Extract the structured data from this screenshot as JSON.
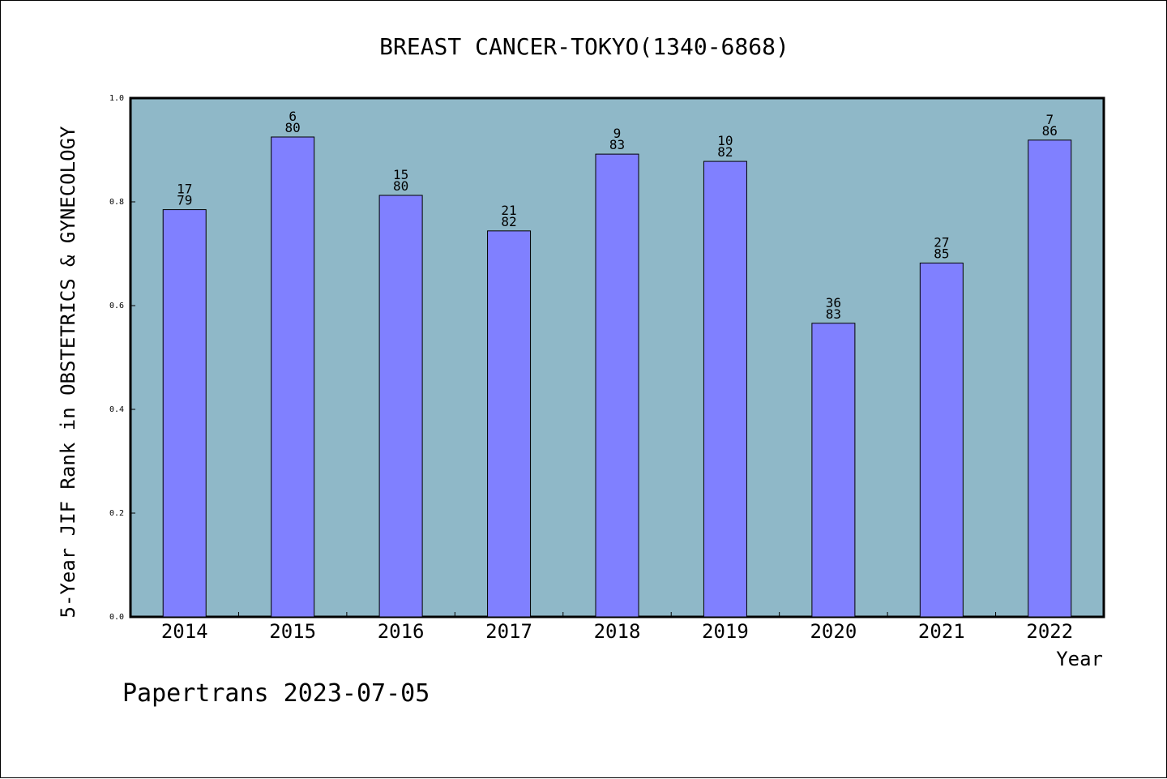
{
  "chart_data": {
    "type": "bar",
    "title": "BREAST CANCER-TOKYO(1340-6868)",
    "xlabel": "Year",
    "ylabel": "5-Year JIF Rank in OBSTETRICS & GYNECOLOGY",
    "categories": [
      "2014",
      "2015",
      "2016",
      "2017",
      "2018",
      "2019",
      "2020",
      "2021",
      "2022"
    ],
    "values": [
      0.785,
      0.925,
      0.8125,
      0.744,
      0.892,
      0.878,
      0.566,
      0.682,
      0.919
    ],
    "rank_labels": [
      "17",
      "6",
      "15",
      "21",
      "9",
      "10",
      "36",
      "27",
      "7"
    ],
    "total_labels": [
      "79",
      "80",
      "80",
      "82",
      "83",
      "82",
      "83",
      "85",
      "86"
    ],
    "ylim": [
      0,
      1.0
    ],
    "yticks": [
      "0.0",
      "0.2",
      "0.4",
      "0.6",
      "0.8",
      "1.0"
    ],
    "grid": false,
    "colors": {
      "bar": "#8080ff",
      "plot_background": "#8fb8c8"
    }
  },
  "footer": {
    "text": "Papertrans 2023-07-05"
  }
}
